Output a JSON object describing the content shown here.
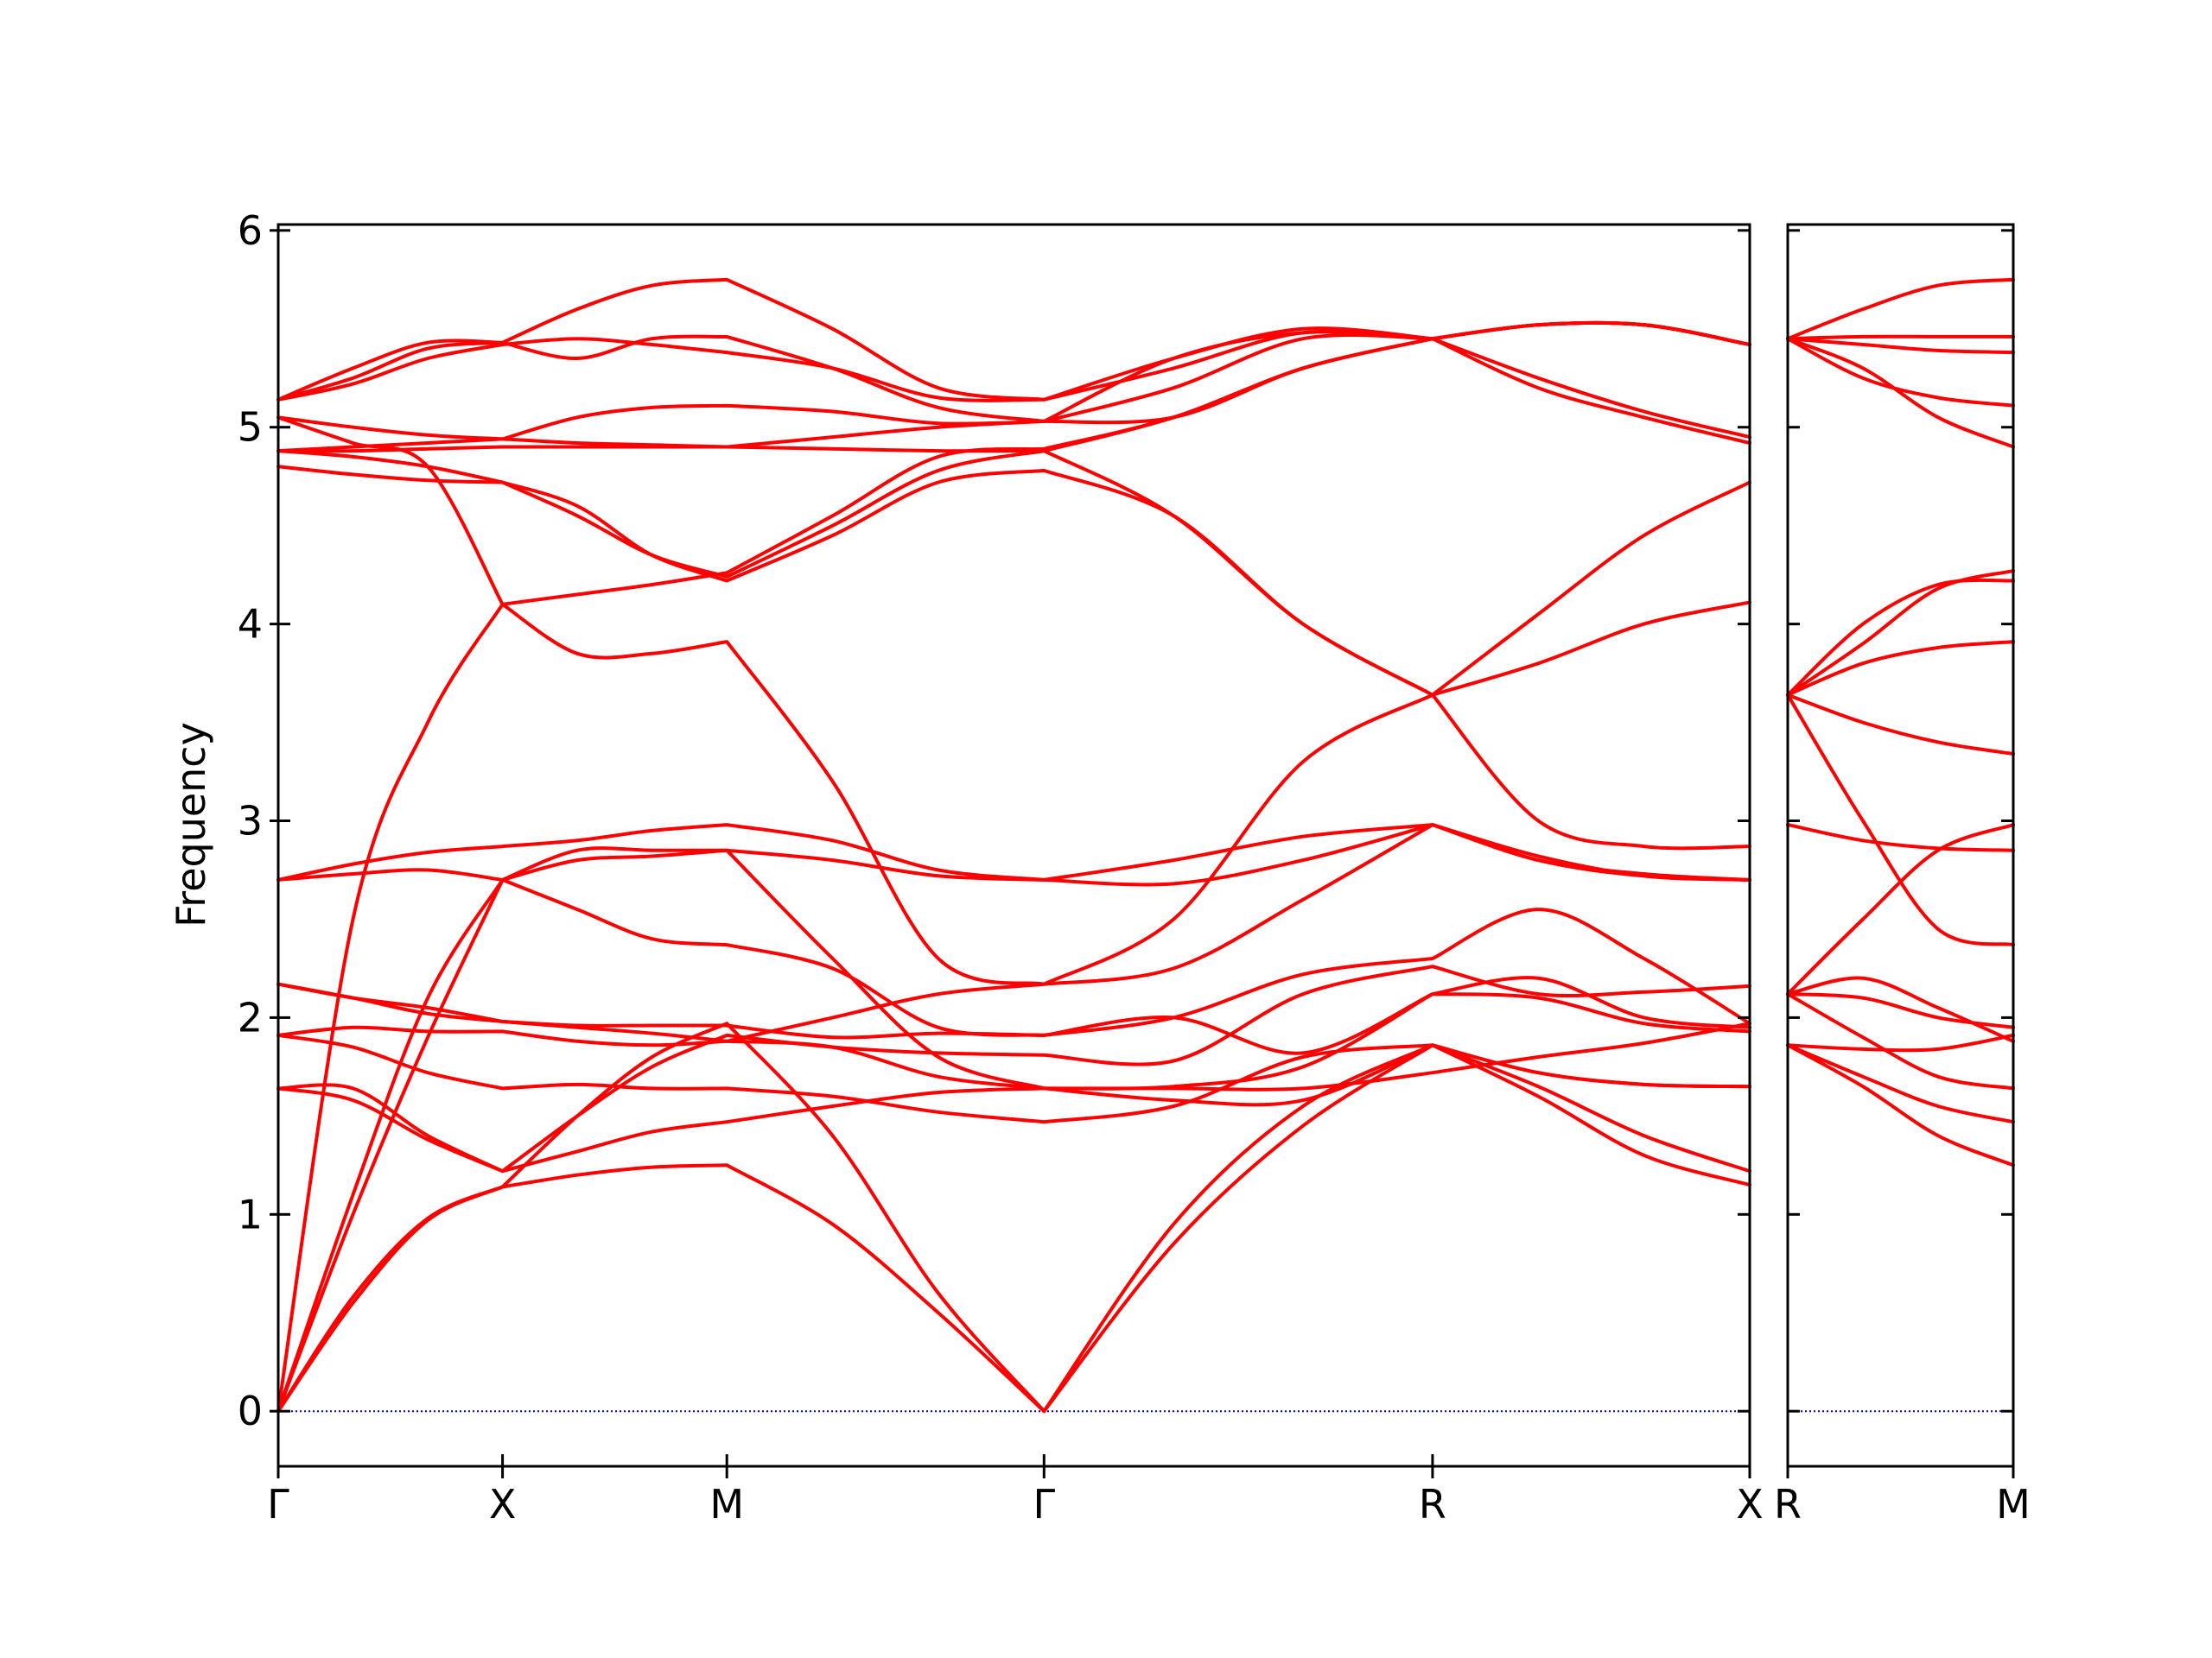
{
  "chart_data": {
    "type": "line",
    "ylabel": "Frequency",
    "ylim": [
      -0.28,
      6.03
    ],
    "yticks": [
      0,
      1,
      2,
      3,
      4,
      5,
      6
    ],
    "line_color": "#ff0000",
    "zero_line_color": "#0000cc",
    "panels": [
      {
        "name": "panel-1",
        "path": [
          "Γ",
          "X",
          "M",
          "Γ",
          "R",
          "X"
        ],
        "segment_lengths": [
          1.0,
          1.0,
          1.414,
          1.732,
          1.414
        ],
        "tick_labels": [
          "Γ",
          "X",
          "M",
          "Γ",
          "R",
          "X"
        ],
        "branches": [
          {
            "segments": [
              [
                0,
                0.55,
                0.97,
                1.14
              ],
              [
                1.14,
                1.2,
                1.24,
                1.25
              ],
              [
                1.25,
                0.95,
                0.5,
                0
              ],
              [
                0,
                0.85,
                1.45,
                1.86
              ],
              [
                1.86,
                1.6,
                1.3,
                1.15
              ]
            ]
          },
          {
            "segments": [
              [
                0,
                0.58,
                0.98,
                1.14
              ],
              [
                1.14,
                1.5,
                1.8,
                1.97
              ],
              [
                1.97,
                1.4,
                0.6,
                0
              ],
              [
                0,
                0.95,
                1.55,
                1.86
              ],
              [
                1.86,
                1.65,
                1.4,
                1.22
              ]
            ]
          },
          {
            "segments": [
              [
                0,
                1.0,
                1.9,
                2.7
              ],
              [
                2.7,
                2.85,
                2.85,
                2.85
              ],
              [
                2.85,
                2.3,
                1.8,
                1.64
              ],
              [
                1.64,
                1.58,
                1.58,
                1.86
              ],
              [
                1.86,
                1.72,
                1.66,
                1.65
              ]
            ]
          },
          {
            "segments": [
              [
                0,
                1.1,
                2.1,
                2.7
              ],
              [
                2.7,
                2.55,
                2.4,
                2.37
              ],
              [
                2.37,
                2.25,
                1.95,
                1.91
              ],
              [
                1.91,
                2.0,
                1.82,
                2.12
              ],
              [
                2.12,
                2.1,
                1.97,
                1.93
              ]
            ]
          },
          {
            "segments": [
              [
                0,
                2.5,
                3.5,
                4.1
              ],
              [
                4.1,
                3.85,
                3.85,
                3.91
              ],
              [
                3.91,
                3.2,
                2.3,
                2.17
              ],
              [
                2.17,
                2.5,
                3.3,
                3.64
              ],
              [
                3.64,
                3.0,
                2.87,
                2.87
              ]
            ]
          },
          {
            "segments": [
              [
                1.64,
                1.58,
                1.38,
                1.22
              ],
              [
                1.22,
                1.32,
                1.42,
                1.47
              ],
              [
                1.47,
                1.55,
                1.62,
                1.64
              ],
              [
                1.64,
                1.64,
                1.64,
                1.72
              ],
              [
                1.72,
                1.8,
                1.87,
                1.97
              ]
            ]
          },
          {
            "segments": [
              [
                1.64,
                1.64,
                1.4,
                1.22
              ],
              [
                1.22,
                1.5,
                1.75,
                1.91
              ],
              [
                1.91,
                1.85,
                1.82,
                1.81
              ],
              [
                1.81,
                1.78,
                2.12,
                2.26
              ],
              [
                2.26,
                2.12,
                2.13,
                2.16
              ]
            ]
          },
          {
            "segments": [
              [
                1.91,
                1.85,
                1.72,
                1.64
              ],
              [
                1.64,
                1.66,
                1.64,
                1.64
              ],
              [
                1.64,
                1.6,
                1.52,
                1.47
              ],
              [
                1.47,
                1.55,
                1.8,
                1.86
              ],
              [
                1.86,
                1.72,
                1.66,
                1.65
              ]
            ]
          },
          {
            "segments": [
              [
                1.91,
                1.95,
                1.93,
                1.93
              ],
              [
                1.93,
                1.88,
                1.86,
                1.88
              ],
              [
                1.88,
                1.85,
                1.7,
                1.64
              ],
              [
                1.64,
                1.65,
                1.75,
                2.12
              ],
              [
                2.12,
                2.2,
                2.0,
                1.95
              ]
            ]
          },
          {
            "segments": [
              [
                2.17,
                2.1,
                2.02,
                1.98
              ],
              [
                1.98,
                1.96,
                1.96,
                1.96
              ],
              [
                1.96,
                1.9,
                1.92,
                1.91
              ],
              [
                1.91,
                2.0,
                2.22,
                2.3
              ],
              [
                2.3,
                2.55,
                2.3,
                1.97
              ]
            ]
          },
          {
            "segments": [
              [
                2.17,
                2.1,
                2.05,
                1.98
              ],
              [
                1.98,
                1.95,
                1.92,
                1.88
              ],
              [
                1.88,
                2.0,
                2.12,
                2.17
              ],
              [
                2.17,
                2.25,
                2.6,
                2.98
              ],
              [
                2.98,
                2.8,
                2.72,
                2.7
              ]
            ]
          },
          {
            "segments": [
              [
                2.7,
                2.73,
                2.75,
                2.7
              ],
              [
                2.7,
                2.8,
                2.82,
                2.85
              ],
              [
                2.85,
                2.8,
                2.72,
                2.7
              ],
              [
                2.7,
                2.8,
                2.92,
                2.98
              ],
              [
                2.98,
                2.82,
                2.72,
                2.7
              ]
            ]
          },
          {
            "segments": [
              [
                2.7,
                2.78,
                2.84,
                2.87
              ],
              [
                2.87,
                2.9,
                2.95,
                2.98
              ],
              [
                2.98,
                2.9,
                2.75,
                2.7
              ],
              [
                2.7,
                2.68,
                2.8,
                2.98
              ],
              [
                2.98,
                2.8,
                2.73,
                2.7
              ]
            ]
          },
          {
            "segments": [
              [
                4.8,
                4.76,
                4.73,
                4.72
              ],
              [
                4.72,
                4.6,
                4.35,
                4.22
              ],
              [
                4.22,
                4.45,
                4.72,
                4.78
              ],
              [
                4.78,
                4.55,
                4.0,
                3.64
              ],
              [
                3.64,
                4.05,
                4.45,
                4.72
              ]
            ]
          },
          {
            "segments": [
              [
                4.88,
                4.85,
                4.8,
                4.72
              ],
              [
                4.72,
                4.55,
                4.35,
                4.24
              ],
              [
                4.24,
                4.5,
                4.78,
                4.88
              ],
              [
                4.88,
                4.55,
                4.0,
                3.64
              ],
              [
                3.64,
                3.8,
                4.0,
                4.11
              ]
            ]
          },
          {
            "segments": [
              [
                4.88,
                4.88,
                4.89,
                4.9
              ],
              [
                4.9,
                4.9,
                4.9,
                4.9
              ],
              [
                4.9,
                4.89,
                4.88,
                4.88
              ],
              [
                4.88,
                5.05,
                5.3,
                5.45
              ],
              [
                5.45,
                5.2,
                5.05,
                4.92
              ]
            ]
          },
          {
            "segments": [
              [
                5.05,
                5.0,
                4.96,
                4.94
              ],
              [
                4.94,
                4.92,
                4.91,
                4.9
              ],
              [
                4.9,
                4.95,
                5.0,
                5.03
              ],
              [
                5.03,
                5.05,
                5.3,
                5.45
              ],
              [
                5.45,
                5.25,
                5.08,
                4.95
              ]
            ]
          },
          {
            "segments": [
              [
                5.05,
                4.92,
                4.8,
                4.1
              ],
              [
                4.1,
                4.15,
                4.2,
                4.26
              ],
              [
                4.26,
                4.55,
                4.85,
                4.89
              ],
              [
                4.89,
                5.05,
                5.3,
                5.45
              ],
              [
                5.45,
                5.52,
                5.52,
                5.42
              ]
            ]
          },
          {
            "segments": [
              [
                4.88,
                4.9,
                4.92,
                4.94
              ],
              [
                4.94,
                5.05,
                5.1,
                5.11
              ],
              [
                5.11,
                5.08,
                5.02,
                5.03
              ],
              [
                5.03,
                5.35,
                5.48,
                5.45
              ],
              [
                5.45,
                5.52,
                5.52,
                5.42
              ]
            ]
          },
          {
            "segments": [
              [
                5.14,
                5.22,
                5.35,
                5.42
              ],
              [
                5.42,
                5.45,
                5.42,
                5.38
              ],
              [
                5.38,
                5.3,
                5.15,
                5.14
              ],
              [
                5.14,
                5.3,
                5.48,
                5.45
              ],
              [
                5.45,
                5.52,
                5.52,
                5.42
              ]
            ]
          },
          {
            "segments": [
              [
                5.14,
                5.25,
                5.4,
                5.43
              ],
              [
                5.43,
                5.6,
                5.72,
                5.75
              ],
              [
                5.75,
                5.5,
                5.2,
                5.14
              ],
              [
                5.14,
                5.35,
                5.5,
                5.45
              ],
              [
                5.45,
                5.52,
                5.52,
                5.42
              ]
            ]
          },
          {
            "segments": [
              [
                5.14,
                5.3,
                5.43,
                5.43
              ],
              [
                5.43,
                5.35,
                5.45,
                5.46
              ],
              [
                5.46,
                5.3,
                5.1,
                5.03
              ],
              [
                5.03,
                5.2,
                5.45,
                5.45
              ],
              [
                5.45,
                5.52,
                5.52,
                5.42
              ]
            ]
          }
        ]
      },
      {
        "name": "panel-2",
        "path": [
          "R",
          "M"
        ],
        "segment_lengths": [
          1.0
        ],
        "tick_labels": [
          "R",
          "M"
        ],
        "branches": [
          {
            "segments": [
              [
                1.86,
                1.65,
                1.4,
                1.25
              ]
            ]
          },
          {
            "segments": [
              [
                1.86,
                1.7,
                1.55,
                1.47
              ]
            ]
          },
          {
            "segments": [
              [
                2.12,
                1.9,
                1.7,
                1.64
              ]
            ]
          },
          {
            "segments": [
              [
                2.12,
                2.2,
                2.05,
                1.88
              ]
            ]
          },
          {
            "segments": [
              [
                1.86,
                1.84,
                1.84,
                1.91
              ]
            ]
          },
          {
            "segments": [
              [
                2.12,
                2.1,
                2.0,
                1.95
              ]
            ]
          },
          {
            "segments": [
              [
                2.12,
                2.5,
                2.85,
                2.98
              ]
            ]
          },
          {
            "segments": [
              [
                2.98,
                2.9,
                2.86,
                2.85
              ]
            ]
          },
          {
            "segments": [
              [
                3.64,
                3.0,
                2.45,
                2.37
              ]
            ]
          },
          {
            "segments": [
              [
                3.64,
                3.5,
                3.4,
                3.34
              ]
            ]
          },
          {
            "segments": [
              [
                3.64,
                3.8,
                3.88,
                3.91
              ]
            ]
          },
          {
            "segments": [
              [
                3.64,
                4.0,
                4.2,
                4.22
              ]
            ]
          },
          {
            "segments": [
              [
                3.64,
                3.9,
                4.18,
                4.27
              ]
            ]
          },
          {
            "segments": [
              [
                5.45,
                5.3,
                5.05,
                4.9
              ]
            ]
          },
          {
            "segments": [
              [
                5.45,
                5.25,
                5.15,
                5.11
              ]
            ]
          },
          {
            "segments": [
              [
                5.45,
                5.42,
                5.39,
                5.38
              ]
            ]
          },
          {
            "segments": [
              [
                5.45,
                5.46,
                5.46,
                5.46
              ]
            ]
          },
          {
            "segments": [
              [
                5.45,
                5.6,
                5.72,
                5.75
              ]
            ]
          }
        ]
      }
    ]
  }
}
